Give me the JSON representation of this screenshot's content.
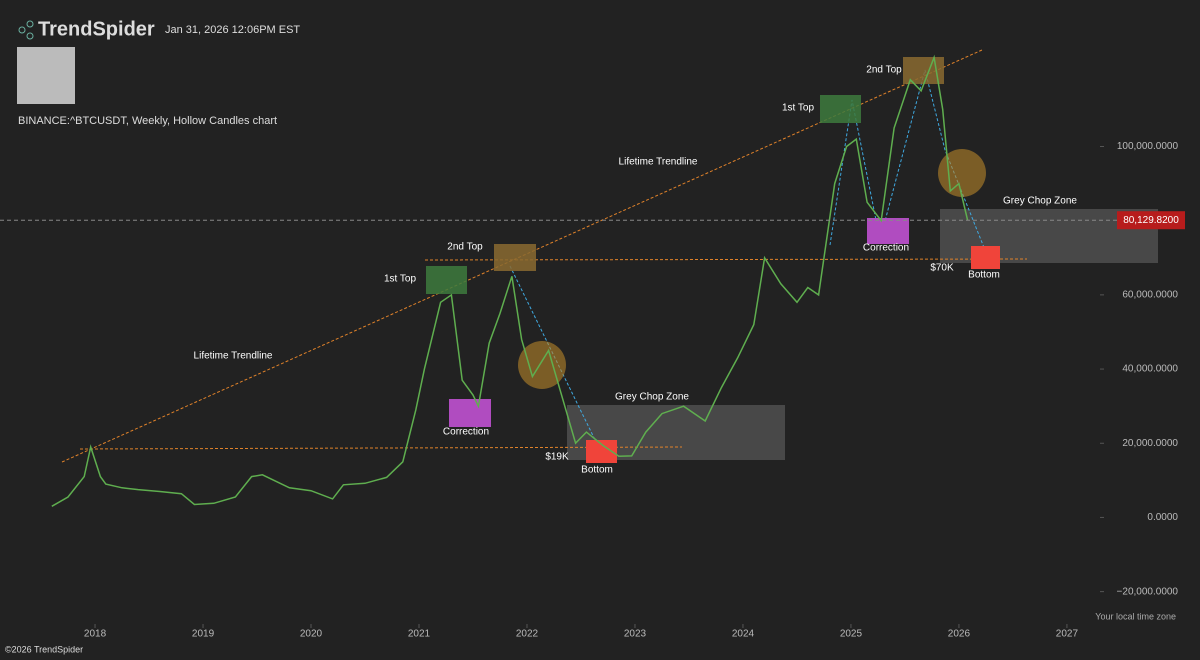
{
  "header": {
    "brand": "TrendSpider",
    "timestamp": "Jan 31, 2026 12:06PM EST"
  },
  "footer": {
    "copyright": "©2026 TrendSpider",
    "timezone_label": "Your local time zone"
  },
  "chart_data": {
    "type": "line",
    "title": "BINANCE:^BTCUSDT, Weekly, Hollow Candles chart",
    "x": [
      2017.6,
      2017.75,
      2017.9,
      2017.96,
      2018.05,
      2018.1,
      2018.25,
      2018.4,
      2018.6,
      2018.8,
      2018.92,
      2019.1,
      2019.3,
      2019.45,
      2019.55,
      2019.8,
      2020.0,
      2020.2,
      2020.3,
      2020.5,
      2020.7,
      2020.85,
      2020.97,
      2021.05,
      2021.2,
      2021.3,
      2021.4,
      2021.5,
      2021.55,
      2021.65,
      2021.75,
      2021.86,
      2021.95,
      2022.05,
      2022.2,
      2022.35,
      2022.45,
      2022.55,
      2022.7,
      2022.85,
      2022.97,
      2023.1,
      2023.25,
      2023.45,
      2023.65,
      2023.8,
      2023.95,
      2024.1,
      2024.2,
      2024.35,
      2024.5,
      2024.6,
      2024.7,
      2024.85,
      2024.96,
      2025.05,
      2025.15,
      2025.28,
      2025.4,
      2025.55,
      2025.65,
      2025.77,
      2025.85,
      2025.92,
      2026.0,
      2026.08
    ],
    "series": [
      {
        "name": "BTCUSDT",
        "color": "#5fae4f",
        "values": [
          3000,
          5500,
          11000,
          19000,
          11000,
          9000,
          8000,
          7500,
          7000,
          6400,
          3500,
          3800,
          5500,
          11000,
          11500,
          8000,
          7200,
          5000,
          8800,
          9200,
          10800,
          15000,
          29000,
          40000,
          58000,
          60000,
          37000,
          33000,
          30000,
          47000,
          55000,
          65000,
          48000,
          38000,
          45000,
          30000,
          20000,
          23000,
          19500,
          16500,
          16600,
          23000,
          28000,
          30000,
          26000,
          35000,
          43000,
          52000,
          70000,
          63000,
          58000,
          62000,
          60000,
          90000,
          100000,
          102000,
          85000,
          80000,
          105000,
          118000,
          115000,
          124000,
          110000,
          88000,
          90000,
          80130
        ]
      }
    ],
    "xlim": [
      2017.12,
      2027.26
    ],
    "xticks": [
      2018,
      2019,
      2020,
      2021,
      2022,
      2023,
      2024,
      2025,
      2026,
      2027
    ],
    "ylim": [
      -29000,
      139500
    ],
    "yticks": [
      {
        "value": -20000,
        "label": "−20,000.0000"
      },
      {
        "value": 0,
        "label": "0.0000"
      },
      {
        "value": 20000,
        "label": "20,000.0000"
      },
      {
        "value": 40000,
        "label": "40,000.0000"
      },
      {
        "value": 60000,
        "label": "60,000.0000"
      },
      {
        "value": 100000,
        "label": "100,000.0000"
      }
    ],
    "last_price": {
      "value": 80129.82,
      "label": "80,129.8200"
    },
    "annotations": [
      "1st Top",
      "2nd Top",
      "Correction",
      "Grey Chop Zone",
      "Bottom",
      "$19K",
      "Lifetime Trendline",
      "Lifetime Trendline",
      "1st Top",
      "2nd Top",
      "Correction",
      "Grey Chop Zone",
      "Bottom",
      "$70K"
    ]
  }
}
